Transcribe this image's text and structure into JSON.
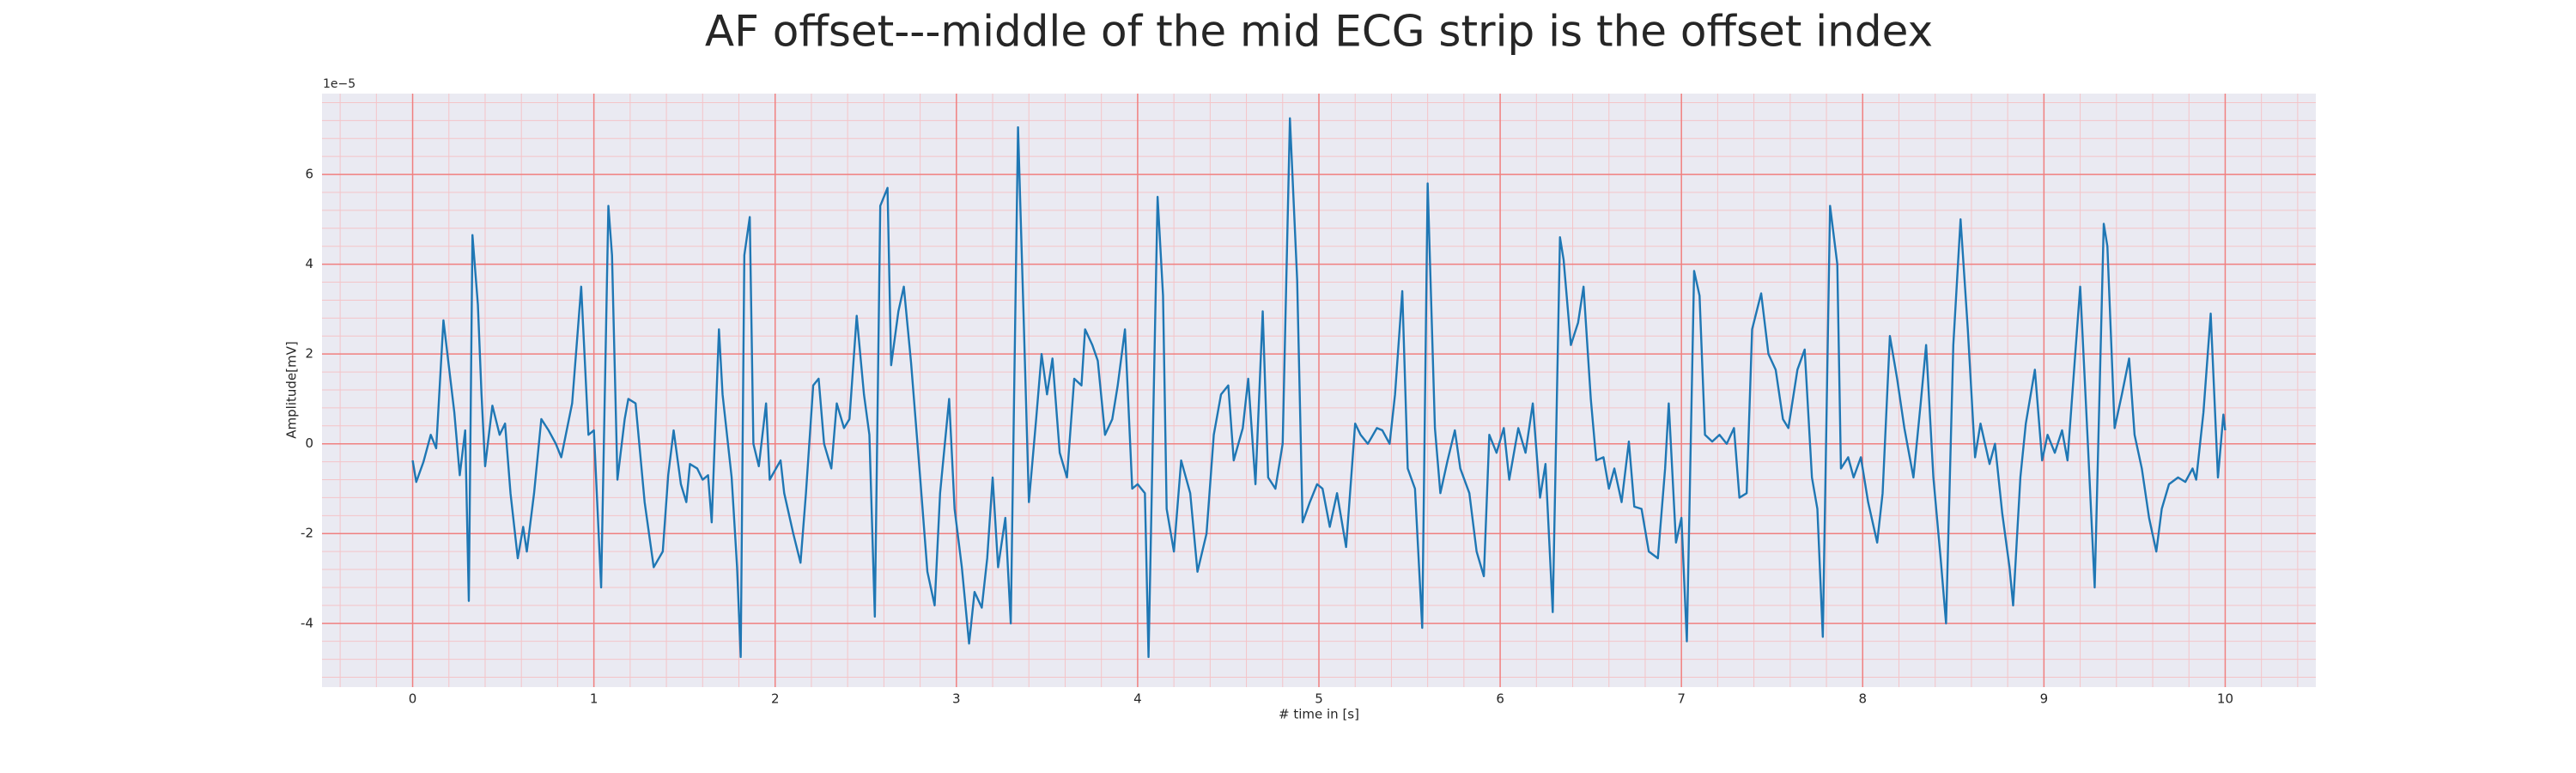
{
  "chart_data": {
    "type": "line",
    "title": "AF offset---middle of the mid ECG strip is the offset index",
    "x_label": "# time in [s]",
    "y_label": "Amplitude[mV]",
    "y_offset_label": "1e−5",
    "xlim": [
      -0.5,
      10.5
    ],
    "ylim": [
      -5.42,
      7.8
    ],
    "xticks": [
      0,
      1,
      2,
      3,
      4,
      5,
      6,
      7,
      8,
      9,
      10
    ],
    "yticks": [
      -4,
      -2,
      0,
      2,
      4,
      6
    ],
    "grid": true,
    "minor_grid": true,
    "grid_color": "#f08080",
    "minor_grid_color": "#f4c4c8",
    "background": "#eaeaf2",
    "series": [
      {
        "color": "#1f77b4",
        "x": [
          0,
          0.02,
          0.06,
          0.1,
          0.13,
          0.17,
          0.23,
          0.26,
          0.29,
          0.31,
          0.33,
          0.36,
          0.38,
          0.4,
          0.44,
          0.48,
          0.51,
          0.54,
          0.58,
          0.61,
          0.63,
          0.67,
          0.71,
          0.75,
          0.79,
          0.82,
          0.88,
          0.93,
          0.97,
          1.0,
          1.04,
          1.08,
          1.1,
          1.13,
          1.17,
          1.19,
          1.23,
          1.28,
          1.33,
          1.38,
          1.41,
          1.44,
          1.48,
          1.51,
          1.53,
          1.57,
          1.6,
          1.63,
          1.65,
          1.69,
          1.71,
          1.76,
          1.79,
          1.81,
          1.83,
          1.86,
          1.88,
          1.91,
          1.95,
          1.97,
          2.03,
          2.05,
          2.1,
          2.14,
          2.17,
          2.21,
          2.24,
          2.27,
          2.31,
          2.34,
          2.38,
          2.41,
          2.45,
          2.49,
          2.52,
          2.55,
          2.58,
          2.62,
          2.64,
          2.68,
          2.71,
          2.75,
          2.8,
          2.84,
          2.88,
          2.91,
          2.96,
          2.99,
          3.03,
          3.07,
          3.1,
          3.14,
          3.17,
          3.2,
          3.23,
          3.27,
          3.3,
          3.34,
          3.37,
          3.4,
          3.44,
          3.47,
          3.5,
          3.53,
          3.57,
          3.61,
          3.65,
          3.69,
          3.71,
          3.75,
          3.78,
          3.82,
          3.86,
          3.89,
          3.93,
          3.97,
          4.0,
          4.04,
          4.06,
          4.11,
          4.14,
          4.16,
          4.2,
          4.24,
          4.29,
          4.33,
          4.38,
          4.42,
          4.46,
          4.5,
          4.53,
          4.58,
          4.61,
          4.65,
          4.69,
          4.72,
          4.76,
          4.8,
          4.84,
          4.88,
          4.91,
          4.95,
          4.99,
          5.02,
          5.06,
          5.1,
          5.15,
          5.2,
          5.23,
          5.27,
          5.32,
          5.35,
          5.39,
          5.42,
          5.46,
          5.49,
          5.53,
          5.57,
          5.6,
          5.64,
          5.67,
          5.71,
          5.75,
          5.78,
          5.83,
          5.87,
          5.91,
          5.94,
          5.98,
          6.02,
          6.05,
          6.1,
          6.14,
          6.18,
          6.22,
          6.25,
          6.29,
          6.33,
          6.35,
          6.39,
          6.43,
          6.46,
          6.5,
          6.53,
          6.57,
          6.6,
          6.63,
          6.67,
          6.71,
          6.74,
          6.78,
          6.82,
          6.87,
          6.91,
          6.93,
          6.97,
          7.0,
          7.03,
          7.07,
          7.1,
          7.13,
          7.17,
          7.21,
          7.25,
          7.29,
          7.32,
          7.36,
          7.39,
          7.44,
          7.48,
          7.52,
          7.56,
          7.59,
          7.64,
          7.68,
          7.72,
          7.75,
          7.78,
          7.82,
          7.86,
          7.88,
          7.92,
          7.95,
          7.99,
          8.03,
          8.08,
          8.11,
          8.15,
          8.19,
          8.23,
          8.28,
          8.32,
          8.35,
          8.39,
          8.43,
          8.46,
          8.5,
          8.54,
          8.58,
          8.62,
          8.65,
          8.7,
          8.73,
          8.77,
          8.81,
          8.83,
          8.87,
          8.9,
          8.95,
          8.99,
          9.02,
          9.06,
          9.1,
          9.13,
          9.17,
          9.2,
          9.24,
          9.28,
          9.33,
          9.35,
          9.39,
          9.43,
          9.47,
          9.5,
          9.54,
          9.58,
          9.62,
          9.65,
          9.69,
          9.74,
          9.78,
          9.82,
          9.84,
          9.88,
          9.92,
          9.96,
          9.99,
          10.0
        ],
        "values": [
          -0.37,
          -0.85,
          -0.4,
          0.2,
          -0.1,
          2.75,
          0.7,
          -0.7,
          0.3,
          -3.5,
          4.65,
          3.1,
          1.1,
          -0.5,
          0.85,
          0.2,
          0.45,
          -1.1,
          -2.55,
          -1.85,
          -2.4,
          -1.1,
          0.55,
          0.3,
          0,
          -0.3,
          0.9,
          3.5,
          0.2,
          0.3,
          -3.2,
          5.3,
          4.2,
          -0.8,
          0.55,
          1.0,
          0.9,
          -1.3,
          -2.75,
          -2.4,
          -0.7,
          0.3,
          -0.9,
          -1.3,
          -0.45,
          -0.55,
          -0.8,
          -0.7,
          -1.75,
          2.55,
          1.1,
          -0.75,
          -2.75,
          -4.75,
          4.2,
          5.05,
          0,
          -0.5,
          0.9,
          -0.8,
          -0.37,
          -1.1,
          -2.0,
          -2.65,
          -1.1,
          1.3,
          1.45,
          0,
          -0.55,
          0.9,
          0.35,
          0.55,
          2.85,
          1.1,
          0.2,
          -3.85,
          5.3,
          5.7,
          1.75,
          2.95,
          3.5,
          1.8,
          -0.75,
          -2.85,
          -3.6,
          -1.1,
          1.0,
          -1.45,
          -2.75,
          -4.45,
          -3.3,
          -3.65,
          -2.55,
          -0.75,
          -2.75,
          -1.65,
          -4.0,
          7.05,
          2.95,
          -1.3,
          0.55,
          2.0,
          1.1,
          1.9,
          -0.2,
          -0.75,
          1.45,
          1.3,
          2.55,
          2.2,
          1.85,
          0.2,
          0.55,
          1.3,
          2.55,
          -1.0,
          -0.9,
          -1.1,
          -4.75,
          5.5,
          3.3,
          -1.45,
          -2.4,
          -0.37,
          -1.1,
          -2.85,
          -2.0,
          0.2,
          1.1,
          1.3,
          -0.37,
          0.35,
          1.45,
          -0.9,
          2.95,
          -0.75,
          -1.0,
          0,
          7.25,
          3.65,
          -1.75,
          -1.3,
          -0.9,
          -1.0,
          -1.85,
          -1.1,
          -2.3,
          0.45,
          0.2,
          0,
          0.35,
          0.3,
          0,
          1.1,
          3.4,
          -0.55,
          -1.0,
          -4.1,
          5.8,
          0.35,
          -1.1,
          -0.37,
          0.3,
          -0.55,
          -1.1,
          -2.4,
          -2.95,
          0.2,
          -0.2,
          0.35,
          -0.8,
          0.35,
          -0.2,
          0.9,
          -1.2,
          -0.45,
          -3.75,
          4.6,
          4.1,
          2.2,
          2.7,
          3.5,
          1.0,
          -0.37,
          -0.3,
          -1.0,
          -0.55,
          -1.3,
          0.05,
          -1.4,
          -1.45,
          -2.4,
          -2.55,
          -0.55,
          0.9,
          -2.2,
          -1.65,
          -4.4,
          3.85,
          3.3,
          0.2,
          0.05,
          0.2,
          0,
          0.35,
          -1.2,
          -1.1,
          2.55,
          3.35,
          2.0,
          1.65,
          0.55,
          0.35,
          1.65,
          2.1,
          -0.75,
          -1.45,
          -4.3,
          5.3,
          4.0,
          -0.55,
          -0.3,
          -0.75,
          -0.3,
          -1.3,
          -2.2,
          -1.1,
          2.4,
          1.45,
          0.35,
          -0.75,
          0.9,
          2.2,
          -0.75,
          -2.55,
          -4.0,
          2.2,
          5.0,
          2.55,
          -0.3,
          0.45,
          -0.45,
          0,
          -1.55,
          -2.75,
          -3.6,
          -0.75,
          0.45,
          1.65,
          -0.37,
          0.2,
          -0.2,
          0.3,
          -0.37,
          1.85,
          3.5,
          0.2,
          -3.2,
          4.9,
          4.4,
          0.35,
          1.1,
          1.9,
          0.2,
          -0.55,
          -1.65,
          -2.4,
          -1.45,
          -0.9,
          -0.75,
          -0.85,
          -0.55,
          -0.8,
          0.7,
          2.9,
          -0.75,
          0.65,
          0.3
        ]
      }
    ]
  }
}
